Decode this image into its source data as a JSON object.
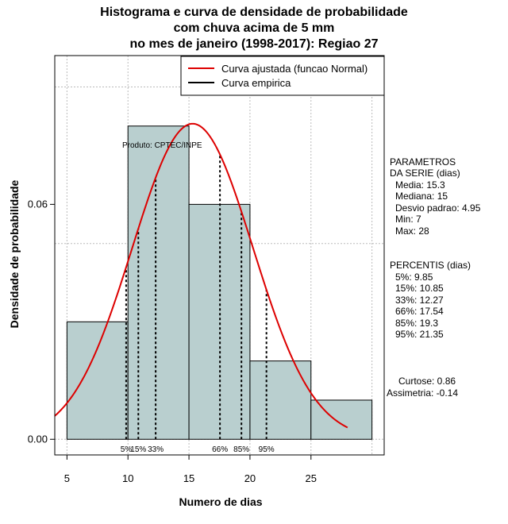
{
  "title_lines": [
    "Histograma e curva de densidade de probabilidade",
    "com chuva acima de 5 mm",
    "no mes de janeiro (1998-2017): Regiao 27"
  ],
  "xlabel": "Numero de dias",
  "ylabel": "Densidade de probabilidade",
  "product_note": "Produto: CPTEC/INPE",
  "legend": {
    "fit_label": "Curva ajustada (funcao Normal)",
    "empirical_label": "Curva empirica",
    "position": "top-right"
  },
  "parameters": {
    "header1": "PARAMETROS",
    "header2": "DA SERIE (dias)",
    "media": "Media: 15.3",
    "mediana": "Mediana: 15",
    "desvio": "Desvio padrao: 4.95",
    "min": "Min: 7",
    "max": "Max: 28"
  },
  "percentis": {
    "header": "PERCENTIS (dias)",
    "lines": [
      "5%: 9.85",
      "15%: 10.85",
      "33%: 12.27",
      "66%: 17.54",
      "85%: 19.3",
      "95%: 21.35"
    ]
  },
  "moments": {
    "curtose": "Curtose: 0.86",
    "assimetria": "Assimetria: -0.14"
  },
  "colors": {
    "bar_fill": "#b9cfcf",
    "fit_curve": "#dd0000",
    "grid": "#bbbbbb"
  },
  "chart_data": {
    "type": "bar",
    "xlim": [
      4,
      31
    ],
    "ylim": [
      -0.004,
      0.098
    ],
    "xticks": [
      5,
      10,
      15,
      20,
      25
    ],
    "yticks": [
      0.0,
      0.06
    ],
    "ytick_labels": [
      "0.00",
      "0.06"
    ],
    "grid": true,
    "bins": [
      {
        "x0": 5,
        "x1": 10,
        "density": 0.03
      },
      {
        "x0": 10,
        "x1": 15,
        "density": 0.08
      },
      {
        "x0": 15,
        "x1": 20,
        "density": 0.06
      },
      {
        "x0": 20,
        "x1": 25,
        "density": 0.02
      },
      {
        "x0": 25,
        "x1": 30,
        "density": 0.01
      }
    ],
    "normal_fit": {
      "mean": 15.3,
      "sd": 4.95,
      "x_from": 4,
      "x_to": 28
    },
    "percentiles": [
      {
        "label": "5%",
        "value": 9.85
      },
      {
        "label": "15%",
        "value": 10.85
      },
      {
        "label": "33%",
        "value": 12.27
      },
      {
        "label": "66%",
        "value": 17.54
      },
      {
        "label": "85%",
        "value": 19.3
      },
      {
        "label": "95%",
        "value": 21.35
      }
    ]
  }
}
